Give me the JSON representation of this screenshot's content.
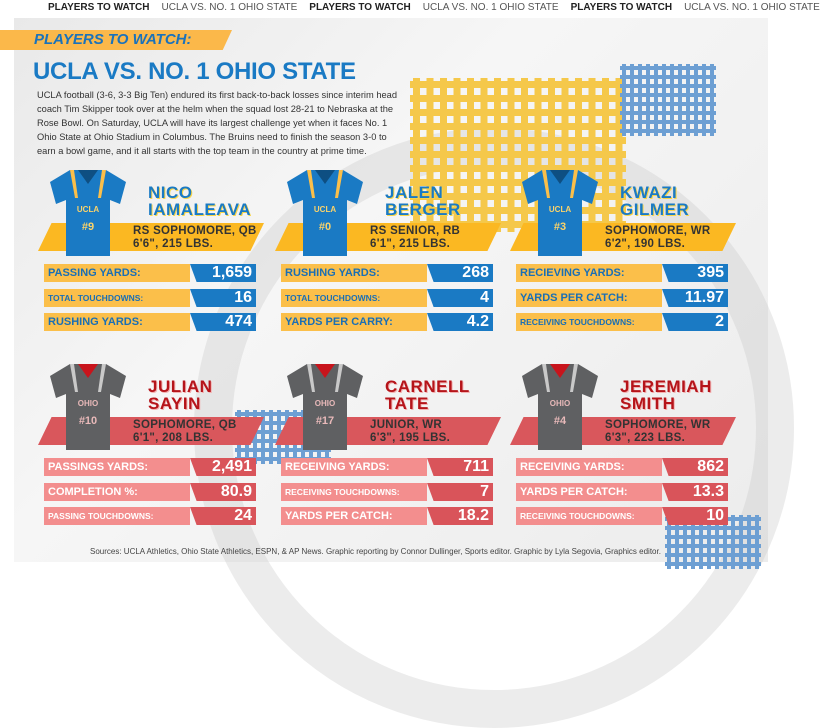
{
  "ticker": [
    "PLAYERS TO WATCH",
    "UCLA VS. NO. 1 OHIO STATE",
    "PLAYERS TO WATCH",
    "UCLA VS. NO. 1 OHIO STATE",
    "PLAYERS TO WATCH",
    "UCLA VS. NO. 1 OHIO STATE"
  ],
  "banner": "PLAYERS TO WATCH:",
  "title": "UCLA VS. NO. 1 OHIO STATE",
  "intro": "UCLA football (3-6, 3-3 Big Ten) endured its first back-to-back losses since interim head coach Tim Skipper took over at the helm when the squad lost 28-21 to Nebraska at the Rose Bowl. On Saturday, UCLA will have its largest challenge yet when it faces No. 1 Ohio State at Ohio Stadium in Columbus. The Bruins need to finish the season 3-0 to earn a bowl game, and it all starts with the top team in the country at prime time.",
  "colors": {
    "ucla_blue": "#1a7ac4",
    "ucla_gold": "#fbb822",
    "osu_red": "#d9545a",
    "osu_gray": "#5f6062"
  },
  "players": [
    {
      "team": "u",
      "jersey_team": "UCLA",
      "number": "#9",
      "name1": "NICO",
      "name2": "IAMALEAVA",
      "info1": "RS SOPHOMORE, QB",
      "info2": "6'6\", 215 LBS.",
      "stats": [
        {
          "label": "PASSING YARDS:",
          "value": "1,659"
        },
        {
          "label": "TOTAL TOUCHDOWNS:",
          "value": "16",
          "small": true
        },
        {
          "label": "RUSHING YARDS:",
          "value": "474"
        }
      ]
    },
    {
      "team": "u",
      "jersey_team": "UCLA",
      "number": "#0",
      "name1": "JALEN",
      "name2": "BERGER",
      "info1": "RS SENIOR, RB",
      "info2": "6'1\", 215 LBS.",
      "stats": [
        {
          "label": "RUSHING YARDS:",
          "value": "268"
        },
        {
          "label": "TOTAL TOUCHDOWNS:",
          "value": "4",
          "small": true
        },
        {
          "label": "YARDS PER CARRY:",
          "value": "4.2"
        }
      ]
    },
    {
      "team": "u",
      "jersey_team": "UCLA",
      "number": "#3",
      "name1": "KWAZI",
      "name2": "GILMER",
      "info1": "SOPHOMORE, WR",
      "info2": "6'2\", 190 LBS.",
      "stats": [
        {
          "label": "RECIEVING YARDS:",
          "value": "395"
        },
        {
          "label": "YARDS PER CATCH:",
          "value": "11.97"
        },
        {
          "label": "RECEIVING TOUCHDOWNS:",
          "value": "2",
          "small": true
        }
      ]
    },
    {
      "team": "o",
      "jersey_team": "OHIO",
      "number": "#10",
      "name1": "JULIAN",
      "name2": "SAYIN",
      "info1": "SOPHOMORE, QB",
      "info2": "6'1\", 208 LBS.",
      "stats": [
        {
          "label": "PASSINGS YARDS:",
          "value": "2,491"
        },
        {
          "label": "COMPLETION %:",
          "value": "80.9"
        },
        {
          "label": "PASSING TOUCHDOWNS:",
          "value": "24",
          "small": true
        }
      ]
    },
    {
      "team": "o",
      "jersey_team": "OHIO",
      "number": "#17",
      "name1": "CARNELL",
      "name2": "TATE",
      "info1": "JUNIOR, WR",
      "info2": "6'3\", 195 LBS.",
      "stats": [
        {
          "label": "RECEIVING YARDS:",
          "value": "711"
        },
        {
          "label": "RECEIVING TOUCHDOWNS:",
          "value": "7",
          "small": true
        },
        {
          "label": "YARDS PER CATCH:",
          "value": "18.2"
        }
      ]
    },
    {
      "team": "o",
      "jersey_team": "OHIO",
      "number": "#4",
      "name1": "JEREMIAH",
      "name2": "SMITH",
      "info1": "SOPHOMORE, WR",
      "info2": "6'3\", 223 LBS.",
      "stats": [
        {
          "label": "RECEIVING YARDS:",
          "value": "862"
        },
        {
          "label": "YARDS PER CATCH:",
          "value": "13.3"
        },
        {
          "label": "RECEIVING TOUCHDOWNS:",
          "value": "10",
          "small": true
        }
      ]
    }
  ],
  "footer": "Sources: UCLA Athletics, Ohio State Athletics, ESPN, & AP News. Graphic reporting by Connor Dullinger, Sports editor. Graphic by Lyla Segovia, Graphics editor."
}
